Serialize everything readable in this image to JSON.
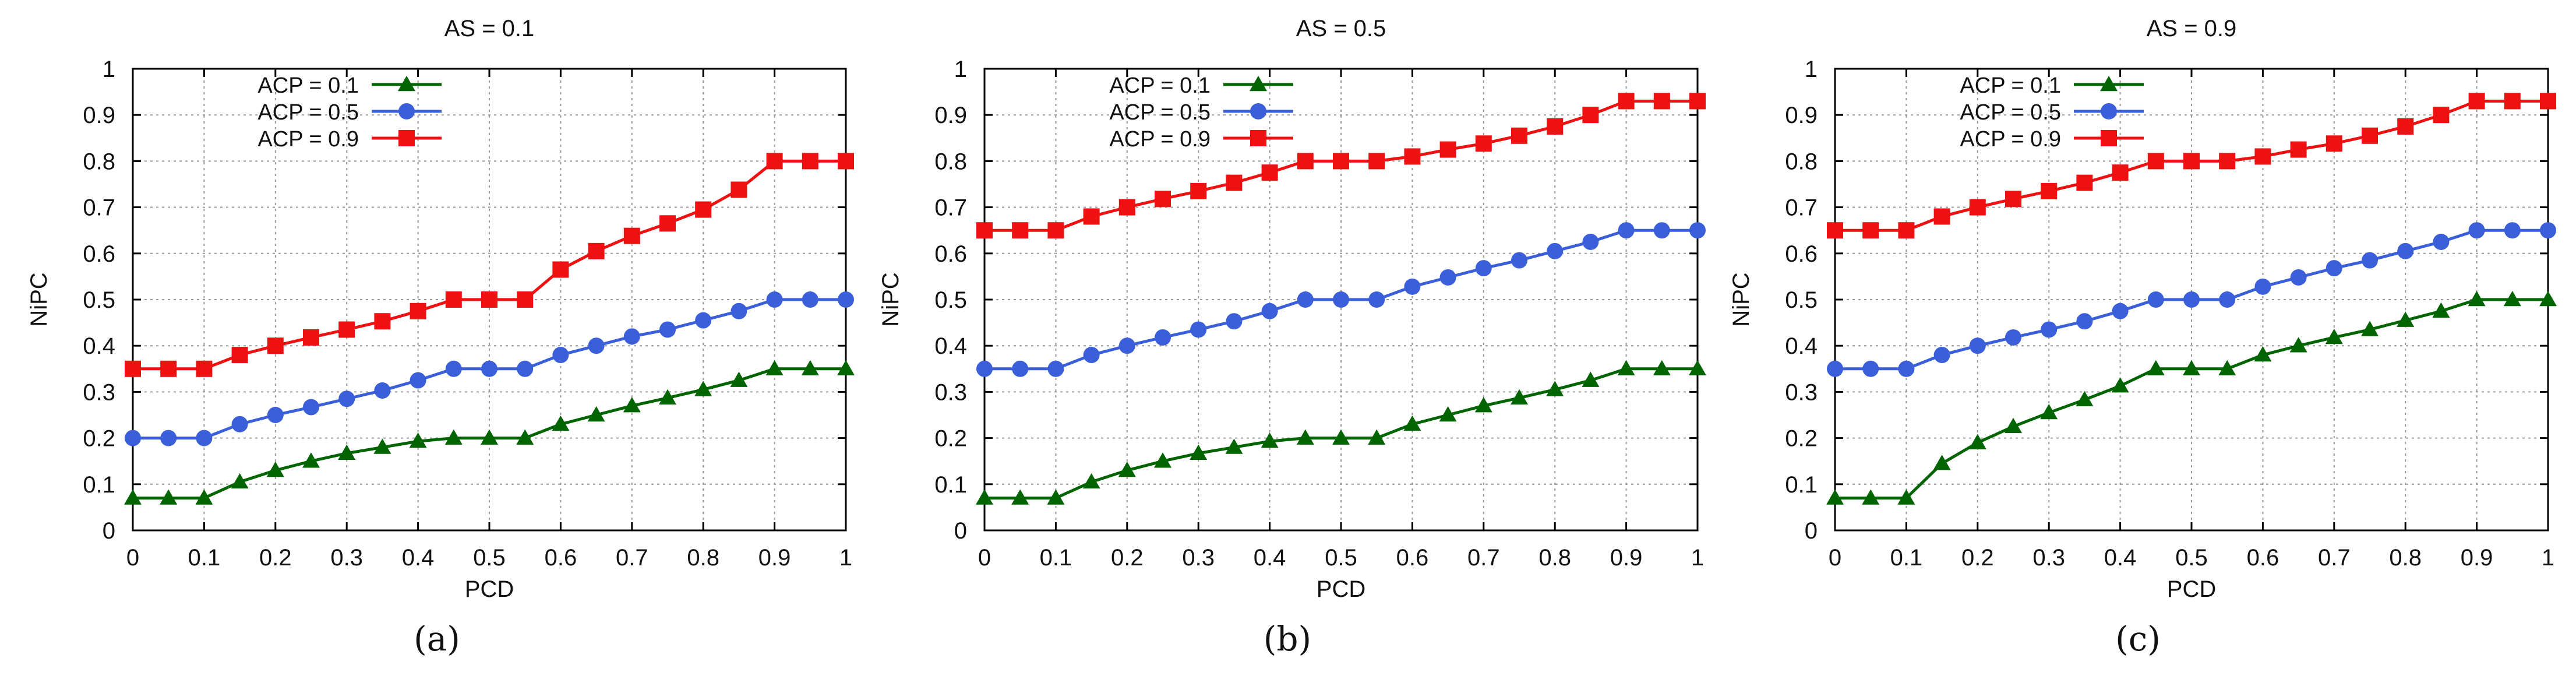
{
  "chart_data": [
    {
      "type": "line",
      "title": "AS = 0.1",
      "xlabel": "PCD",
      "ylabel": "NiPC",
      "caption": "(a)",
      "xlim": [
        0,
        1
      ],
      "ylim": [
        0,
        1
      ],
      "grid": true,
      "legend": "top-left",
      "x": [
        0,
        0.05,
        0.1,
        0.15,
        0.2,
        0.25,
        0.3,
        0.35,
        0.4,
        0.45,
        0.5,
        0.55,
        0.6,
        0.65,
        0.7,
        0.75,
        0.8,
        0.85,
        0.9,
        0.95,
        1
      ],
      "xticks": [
        "0",
        "0.1",
        "0.2",
        "0.3",
        "0.4",
        "0.5",
        "0.6",
        "0.7",
        "0.8",
        "0.9",
        "1"
      ],
      "yticks": [
        "0",
        "0.1",
        "0.2",
        "0.3",
        "0.4",
        "0.5",
        "0.6",
        "0.7",
        "0.8",
        "0.9",
        "1"
      ],
      "series": [
        {
          "name": "ACP = 0.1",
          "color": "#006400",
          "marker": "triangle",
          "values": [
            0.07,
            0.07,
            0.07,
            0.105,
            0.13,
            0.15,
            0.167,
            0.18,
            0.193,
            0.2,
            0.2,
            0.2,
            0.23,
            0.25,
            0.27,
            0.287,
            0.305,
            0.325,
            0.35,
            0.35,
            0.35
          ]
        },
        {
          "name": "ACP = 0.5",
          "color": "#3a5fd8",
          "marker": "circle",
          "values": [
            0.2,
            0.2,
            0.2,
            0.23,
            0.25,
            0.267,
            0.285,
            0.303,
            0.325,
            0.35,
            0.35,
            0.35,
            0.38,
            0.4,
            0.42,
            0.435,
            0.455,
            0.475,
            0.5,
            0.5,
            0.5
          ]
        },
        {
          "name": "ACP = 0.9",
          "color": "#ee1111",
          "marker": "square",
          "values": [
            0.35,
            0.35,
            0.35,
            0.38,
            0.4,
            0.418,
            0.435,
            0.453,
            0.475,
            0.5,
            0.5,
            0.5,
            0.565,
            0.605,
            0.638,
            0.665,
            0.695,
            0.738,
            0.8,
            0.8,
            0.8
          ]
        }
      ]
    },
    {
      "type": "line",
      "title": "AS = 0.5",
      "xlabel": "PCD",
      "ylabel": "NiPC",
      "caption": "(b)",
      "xlim": [
        0,
        1
      ],
      "ylim": [
        0,
        1
      ],
      "grid": true,
      "legend": "top-left",
      "x": [
        0,
        0.05,
        0.1,
        0.15,
        0.2,
        0.25,
        0.3,
        0.35,
        0.4,
        0.45,
        0.5,
        0.55,
        0.6,
        0.65,
        0.7,
        0.75,
        0.8,
        0.85,
        0.9,
        0.95,
        1
      ],
      "xticks": [
        "0",
        "0.1",
        "0.2",
        "0.3",
        "0.4",
        "0.5",
        "0.6",
        "0.7",
        "0.8",
        "0.9",
        "1"
      ],
      "yticks": [
        "0",
        "0.1",
        "0.2",
        "0.3",
        "0.4",
        "0.5",
        "0.6",
        "0.7",
        "0.8",
        "0.9",
        "1"
      ],
      "series": [
        {
          "name": "ACP = 0.1",
          "color": "#006400",
          "marker": "triangle",
          "values": [
            0.07,
            0.07,
            0.07,
            0.105,
            0.13,
            0.15,
            0.167,
            0.18,
            0.193,
            0.2,
            0.2,
            0.2,
            0.23,
            0.25,
            0.27,
            0.287,
            0.305,
            0.325,
            0.35,
            0.35,
            0.35
          ]
        },
        {
          "name": "ACP = 0.5",
          "color": "#3a5fd8",
          "marker": "circle",
          "values": [
            0.35,
            0.35,
            0.35,
            0.38,
            0.4,
            0.418,
            0.435,
            0.453,
            0.475,
            0.5,
            0.5,
            0.5,
            0.528,
            0.548,
            0.568,
            0.585,
            0.605,
            0.625,
            0.65,
            0.65,
            0.65
          ]
        },
        {
          "name": "ACP = 0.9",
          "color": "#ee1111",
          "marker": "square",
          "values": [
            0.65,
            0.65,
            0.65,
            0.68,
            0.7,
            0.718,
            0.735,
            0.753,
            0.775,
            0.8,
            0.8,
            0.8,
            0.81,
            0.825,
            0.838,
            0.855,
            0.875,
            0.9,
            0.93,
            0.93,
            0.93
          ]
        }
      ]
    },
    {
      "type": "line",
      "title": "AS = 0.9",
      "xlabel": "PCD",
      "ylabel": "NiPC",
      "caption": "(c)",
      "xlim": [
        0,
        1
      ],
      "ylim": [
        0,
        1
      ],
      "grid": true,
      "legend": "top-left",
      "x": [
        0,
        0.05,
        0.1,
        0.15,
        0.2,
        0.25,
        0.3,
        0.35,
        0.4,
        0.45,
        0.5,
        0.55,
        0.6,
        0.65,
        0.7,
        0.75,
        0.8,
        0.85,
        0.9,
        0.95,
        1
      ],
      "xticks": [
        "0",
        "0.1",
        "0.2",
        "0.3",
        "0.4",
        "0.5",
        "0.6",
        "0.7",
        "0.8",
        "0.9",
        "1"
      ],
      "yticks": [
        "0",
        "0.1",
        "0.2",
        "0.3",
        "0.4",
        "0.5",
        "0.6",
        "0.7",
        "0.8",
        "0.9",
        "1"
      ],
      "series": [
        {
          "name": "ACP = 0.1",
          "color": "#006400",
          "marker": "triangle",
          "values": [
            0.07,
            0.07,
            0.07,
            0.145,
            0.19,
            0.225,
            0.255,
            0.283,
            0.313,
            0.35,
            0.35,
            0.35,
            0.38,
            0.4,
            0.418,
            0.435,
            0.455,
            0.475,
            0.5,
            0.5,
            0.5
          ]
        },
        {
          "name": "ACP = 0.5",
          "color": "#3a5fd8",
          "marker": "circle",
          "values": [
            0.35,
            0.35,
            0.35,
            0.38,
            0.4,
            0.418,
            0.435,
            0.453,
            0.475,
            0.5,
            0.5,
            0.5,
            0.528,
            0.548,
            0.568,
            0.585,
            0.605,
            0.625,
            0.65,
            0.65,
            0.65
          ]
        },
        {
          "name": "ACP = 0.9",
          "color": "#ee1111",
          "marker": "square",
          "values": [
            0.65,
            0.65,
            0.65,
            0.68,
            0.7,
            0.718,
            0.735,
            0.753,
            0.775,
            0.8,
            0.8,
            0.8,
            0.81,
            0.825,
            0.838,
            0.855,
            0.875,
            0.9,
            0.93,
            0.93,
            0.93
          ]
        }
      ]
    }
  ]
}
